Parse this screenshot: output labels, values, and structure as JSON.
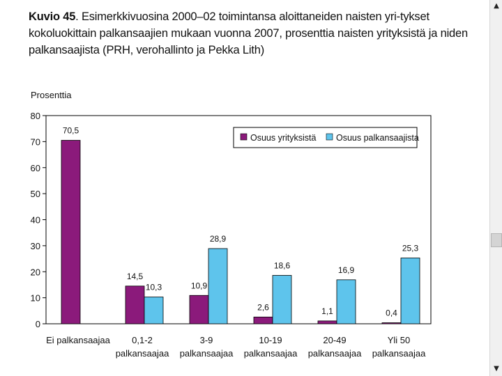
{
  "caption": {
    "label": "Kuvio 45",
    "text": ". Esimerkkivuosina 2000–02 toimintansa aloittaneiden naisten yri-tykset kokoluokittain palkansaajien mukaan vuonna 2007, prosenttia naisten yrityksistä ja niden palkansaajista (PRH, verohallinto ja Pekka Lith)"
  },
  "chart_data": {
    "type": "bar",
    "ylabel": "Prosenttia",
    "ylim": [
      0,
      80
    ],
    "yticks": [
      0,
      10,
      20,
      30,
      40,
      50,
      60,
      70,
      80
    ],
    "categories": [
      [
        "Ei palkansaajaa"
      ],
      [
        "0,1-2",
        "palkansaajaa"
      ],
      [
        "3-9",
        "palkansaajaa"
      ],
      [
        "10-19",
        "palkansaajaa"
      ],
      [
        "20-49",
        "palkansaajaa"
      ],
      [
        "Yli 50",
        "palkansaajaa"
      ]
    ],
    "series": [
      {
        "name": "Osuus yrityksistä",
        "color": "#8b1a7b",
        "values": [
          70.5,
          14.5,
          10.9,
          2.6,
          1.1,
          0.4
        ],
        "labels": [
          "70,5",
          "14,5",
          "10,9",
          "2,6",
          "1,1",
          "0,4"
        ]
      },
      {
        "name": "Osuus palkansaajista",
        "color": "#5ec4ec",
        "values": [
          null,
          10.3,
          28.9,
          18.6,
          16.9,
          25.3
        ],
        "labels": [
          "",
          "10,3",
          "28,9",
          "18,6",
          "16,9",
          "25,3"
        ]
      }
    ],
    "legend_position": "top-right",
    "grid": false
  },
  "scrollbar": {
    "up_icon": "▲",
    "down_icon": "▼"
  }
}
